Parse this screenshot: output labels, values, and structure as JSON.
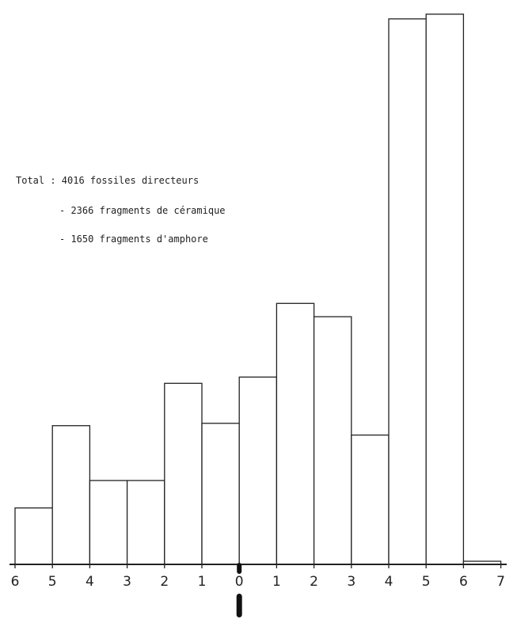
{
  "annotations": {
    "total": "Total : 4016 fossiles directeurs",
    "ceramique": "- 2366 fragments de céramique",
    "amphore": "- 1650 fragments d'amphore"
  },
  "chart_data": {
    "type": "bar",
    "title": "",
    "xlabel": "",
    "ylabel": "",
    "x_tick_labels": [
      "6",
      "5",
      "4",
      "3",
      "2",
      "1",
      "0",
      "1",
      "2",
      "3",
      "4",
      "5",
      "6",
      "7"
    ],
    "zero_marker_label": "0",
    "bin_edges_tick_index": [
      0,
      1,
      2,
      3,
      4,
      5,
      6,
      7,
      8,
      9,
      10,
      11,
      12,
      13
    ],
    "values": [
      72,
      177,
      107,
      107,
      231,
      180,
      239,
      333,
      316,
      165,
      696,
      702,
      4
    ],
    "ylim": [
      0,
      710
    ],
    "grid": false,
    "legend": "none",
    "bar_fill": "#ffffff",
    "bar_stroke": "#222222"
  }
}
